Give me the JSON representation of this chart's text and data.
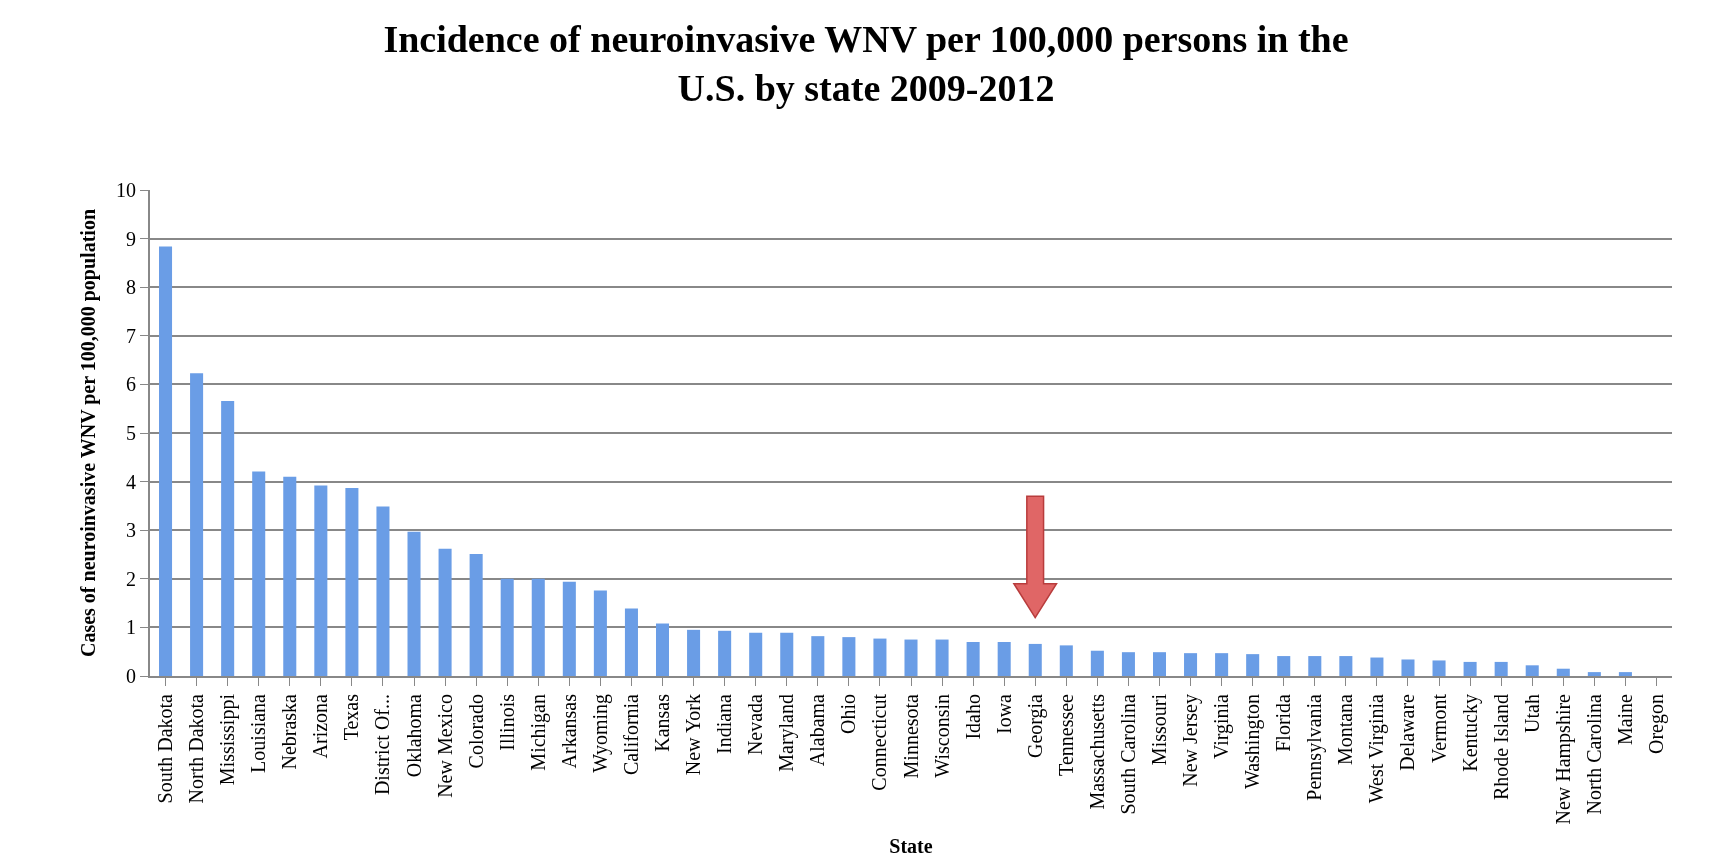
{
  "chart_data": {
    "type": "bar",
    "title": "Incidence of neuroinvasive WNV per 100,000 persons in the U.S. by state 2009-2012",
    "xlabel": "State",
    "ylabel": "Cases of neuroinvasive WNV per 100,000 population",
    "categories": [
      "South Dakota",
      "North Dakota",
      "Mississippi",
      "Louisiana",
      "Nebraska",
      "Arizona",
      "Texas",
      "District Of...",
      "Oklahoma",
      "New Mexico",
      "Colorado",
      "Illinois",
      "Michigan",
      "Arkansas",
      "Wyoming",
      "California",
      "Kansas",
      "New York",
      "Indiana",
      "Nevada",
      "Maryland",
      "Alabama",
      "Ohio",
      "Connecticut",
      "Minnesota",
      "Wisconsin",
      "Idaho",
      "Iowa",
      "Georgia",
      "Tennessee",
      "Massachusetts",
      "South Carolina",
      "Missouri",
      "New Jersey",
      "Virginia",
      "Washington",
      "Florida",
      "Pennsylvania",
      "Montana",
      "West Virginia",
      "Delaware",
      "Vermont",
      "Kentucky",
      "Rhode Island",
      "Utah",
      "New Hampshire",
      "North Carolina",
      "Maine",
      "Oregon"
    ],
    "values": [
      8.84,
      6.23,
      5.66,
      4.21,
      4.1,
      3.92,
      3.87,
      3.49,
      2.97,
      2.62,
      2.51,
      2.0,
      2.0,
      1.94,
      1.76,
      1.39,
      1.08,
      0.95,
      0.93,
      0.89,
      0.89,
      0.82,
      0.8,
      0.77,
      0.75,
      0.75,
      0.7,
      0.7,
      0.66,
      0.63,
      0.52,
      0.49,
      0.49,
      0.47,
      0.47,
      0.45,
      0.41,
      0.41,
      0.41,
      0.38,
      0.34,
      0.32,
      0.29,
      0.29,
      0.22,
      0.15,
      0.08,
      0.08,
      0
    ],
    "color": "#6a9de6",
    "ylim": [
      0,
      10
    ],
    "yticks": [
      0,
      1,
      2,
      3,
      4,
      5,
      6,
      7,
      8,
      9,
      10
    ],
    "grid": "y",
    "legend": false
  }
}
